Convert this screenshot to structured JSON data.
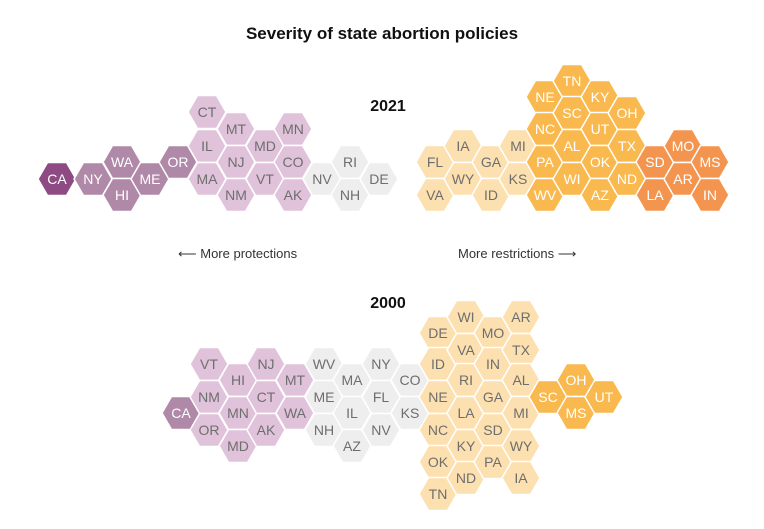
{
  "chart_data": {
    "type": "hex-tile",
    "title": "Severity of state abortion policies",
    "legend": {
      "left": "More protections",
      "right": "More restrictions"
    },
    "levels": [
      {
        "level": 0,
        "color": "#8e4a83",
        "text": "#ffffff"
      },
      {
        "level": 1,
        "color": "#b088a8",
        "text": "#ffffff"
      },
      {
        "level": 2,
        "color": "#e0c3da",
        "text": "#6e6e6e"
      },
      {
        "level": 3,
        "color": "#eeeeee",
        "text": "#6e6e6e"
      },
      {
        "level": 4,
        "color": "#fde0b0",
        "text": "#6e6e6e"
      },
      {
        "level": 5,
        "color": "#f9b94e",
        "text": "#ffffff"
      },
      {
        "level": 6,
        "color": "#f4954f",
        "text": "#ffffff"
      }
    ],
    "years": [
      {
        "year": "2021",
        "states": {
          "CA": 0,
          "NY": 1,
          "WA": 1,
          "HI": 1,
          "ME": 1,
          "OR": 1,
          "CT": 2,
          "IL": 2,
          "MA": 2,
          "MT": 2,
          "NJ": 2,
          "NM": 2,
          "MD": 2,
          "VT": 2,
          "MN": 2,
          "CO": 2,
          "AK": 2,
          "NV": 3,
          "RI": 3,
          "NH": 3,
          "DE": 3,
          "FL": 4,
          "VA": 4,
          "IA": 4,
          "WY": 4,
          "GA": 4,
          "ID": 4,
          "MI": 4,
          "KS": 4,
          "NE": 5,
          "NC": 5,
          "PA": 5,
          "WV": 5,
          "TN": 5,
          "SC": 5,
          "AL": 5,
          "WI": 5,
          "KY": 5,
          "UT": 5,
          "OK": 5,
          "AZ": 5,
          "OH": 5,
          "TX": 5,
          "ND": 5,
          "SD": 6,
          "LA": 6,
          "MO": 6,
          "AR": 6,
          "MS": 6,
          "IN": 6
        }
      },
      {
        "year": "2000",
        "states": {
          "CA": 1,
          "VT": 2,
          "NM": 2,
          "OR": 2,
          "HI": 2,
          "MN": 2,
          "MD": 2,
          "NJ": 2,
          "CT": 2,
          "AK": 2,
          "MT": 2,
          "WA": 2,
          "WV": 3,
          "ME": 3,
          "NH": 3,
          "MA": 3,
          "IL": 3,
          "AZ": 3,
          "NY": 3,
          "FL": 3,
          "NV": 3,
          "CO": 3,
          "KS": 3,
          "DE": 4,
          "ID": 4,
          "NE": 4,
          "NC": 4,
          "OK": 4,
          "TN": 4,
          "WI": 4,
          "VA": 4,
          "RI": 4,
          "LA": 4,
          "KY": 4,
          "ND": 4,
          "MO": 4,
          "IN": 4,
          "GA": 4,
          "SD": 4,
          "PA": 4,
          "AR": 4,
          "TX": 4,
          "AL": 4,
          "MI": 4,
          "WY": 4,
          "IA": 4,
          "SC": 5,
          "OH": 5,
          "MS": 5,
          "UT": 5
        }
      }
    ]
  }
}
